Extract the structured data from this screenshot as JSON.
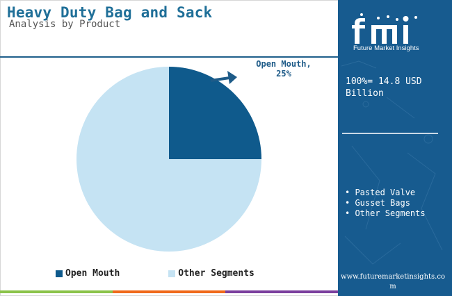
{
  "header": {
    "title": "Heavy Duty Bag and Sack",
    "subtitle": "Analysis by Product"
  },
  "chart_data": {
    "type": "pie",
    "slices": [
      {
        "label": "Open Mouth",
        "value": 25,
        "color": "#0f5a8c"
      },
      {
        "label": "Other Segments",
        "value": 75,
        "color": "#c5e3f3"
      }
    ],
    "callout": {
      "label": "Open Mouth,",
      "value": "25%"
    },
    "legend": [
      "Open Mouth",
      "Other Segments"
    ],
    "legend_position": "bottom"
  },
  "side_panel": {
    "logo_text": "fmi",
    "logo_subtitle": "Future Market Insights",
    "total": "100%= 14.8 USD Billion",
    "other_segments": [
      "Pasted Valve",
      "Gusset Bags",
      "Other Segments"
    ],
    "website": "www.futuremarketinsights.com"
  },
  "colors": {
    "accent": "#1f6f98",
    "panel": "#175b8f",
    "bottom_bar": [
      "#8bc34a",
      "#f06a1b",
      "#7b3f9e"
    ]
  }
}
